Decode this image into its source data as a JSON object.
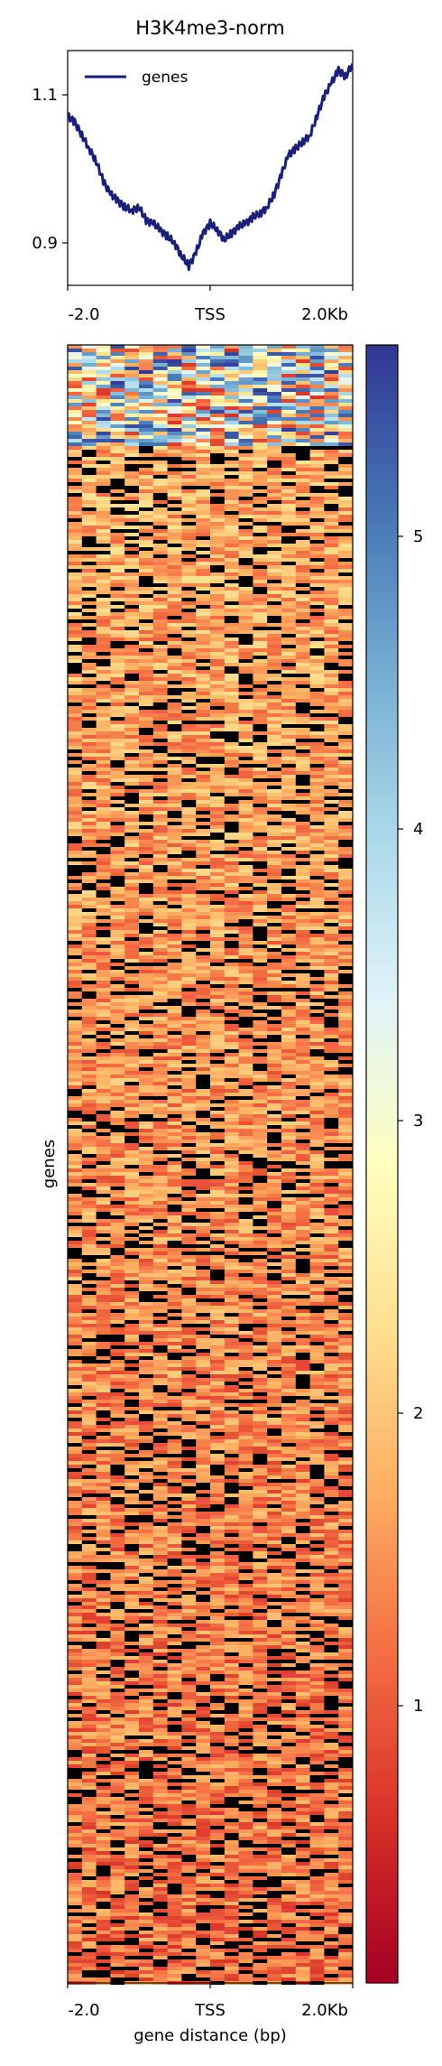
{
  "chart_data": [
    {
      "type": "line",
      "title": "H3K4me3-norm",
      "legend": {
        "placement": "top-left",
        "entries": [
          "genes"
        ]
      },
      "series": [
        {
          "name": "genes",
          "color": "#1a1f7a",
          "x": [
            -2000,
            -1900,
            -1800,
            -1700,
            -1600,
            -1500,
            -1400,
            -1300,
            -1200,
            -1100,
            -1000,
            -900,
            -800,
            -700,
            -600,
            -500,
            -400,
            -300,
            -200,
            -100,
            0,
            100,
            200,
            300,
            400,
            500,
            600,
            700,
            800,
            900,
            1000,
            1100,
            1200,
            1300,
            1400,
            1500,
            1600,
            1700,
            1800,
            1900,
            2000
          ],
          "y": [
            1.08,
            1.07,
            1.05,
            1.03,
            1.01,
            0.98,
            0.96,
            0.95,
            0.94,
            0.935,
            0.94,
            0.92,
            0.915,
            0.905,
            0.895,
            0.885,
            0.865,
            0.85,
            0.87,
            0.9,
            0.915,
            0.905,
            0.89,
            0.9,
            0.91,
            0.915,
            0.925,
            0.93,
            0.94,
            0.96,
            0.99,
            1.02,
            1.03,
            1.04,
            1.05,
            1.08,
            1.11,
            1.13,
            1.15,
            1.14,
            1.16
          ]
        }
      ],
      "yticks": [
        "0.9",
        "1.1"
      ],
      "xticks": [
        "-2.0",
        "TSS",
        "2.0Kb"
      ],
      "xlim": [
        -2000,
        2000
      ],
      "ylim": [
        0.82,
        1.18
      ]
    },
    {
      "type": "heatmap",
      "ylabel": "genes",
      "xlabel": "gene distance (bp)",
      "xticks": [
        "-2.0",
        "TSS",
        "2.0Kb"
      ],
      "colormap": "RdYlBu",
      "colorbar": {
        "ticks": [
          "1",
          "2",
          "3",
          "4",
          "5"
        ],
        "range": [
          0.05,
          5.7
        ]
      }
    }
  ]
}
